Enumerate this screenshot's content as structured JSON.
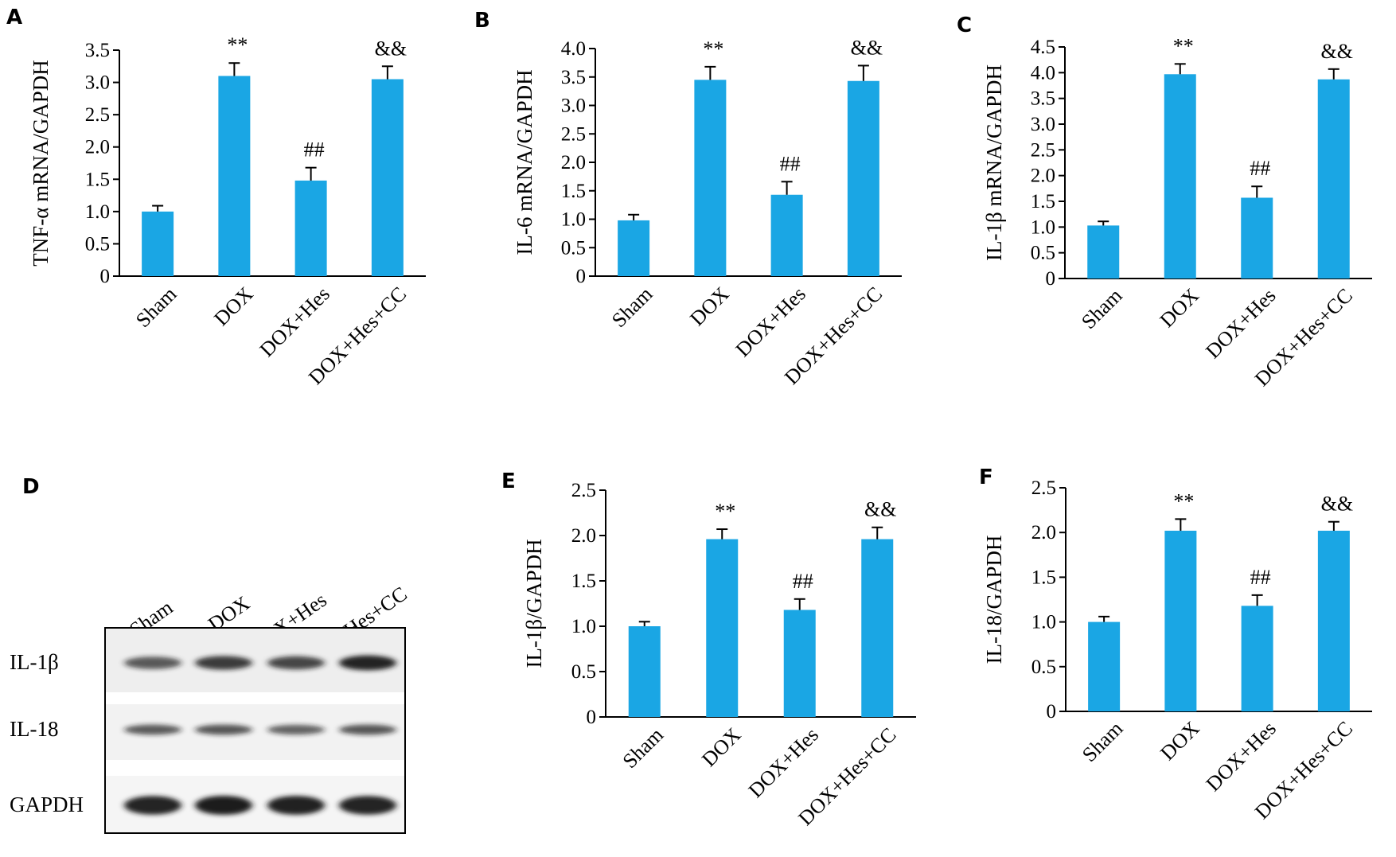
{
  "figure": {
    "panel_letters": [
      "A",
      "B",
      "C",
      "D",
      "E",
      "F"
    ]
  },
  "colors": {
    "bar": "#1aa6e4",
    "axis": "#000000",
    "blot_band": "#1a1a1a"
  },
  "blot": {
    "lanes": [
      "Sham",
      "DOX",
      "DOX+Hes",
      "DOX+Hes+CC"
    ],
    "rows": [
      "IL-1β",
      "IL-18",
      "GAPDH"
    ],
    "band_intensity": [
      [
        0.55,
        0.75,
        0.68,
        0.95
      ],
      [
        0.55,
        0.58,
        0.5,
        0.58
      ],
      [
        0.95,
        1.0,
        0.97,
        0.95
      ]
    ]
  },
  "chart_data": [
    {
      "panel": "A",
      "type": "bar",
      "ylabel": "TNF-α mRNA/GAPDH",
      "categories": [
        "Sham",
        "DOX",
        "DOX+Hes",
        "DOX+Hes+CC"
      ],
      "values": [
        1.0,
        3.1,
        1.48,
        3.05
      ],
      "errors": [
        0.09,
        0.2,
        0.2,
        0.2
      ],
      "annotations": [
        "",
        "**",
        "##",
        "&&"
      ],
      "ylim": [
        0,
        3.5
      ],
      "yticks": [
        0,
        0.5,
        1.0,
        1.5,
        2.0,
        2.5,
        3.0,
        3.5
      ],
      "ytick_labels": [
        "0",
        "0.5",
        "1.0",
        "1.5",
        "2.0",
        "2.5",
        "3.0",
        "3.5"
      ]
    },
    {
      "panel": "B",
      "type": "bar",
      "ylabel": "IL-6 mRNA/GAPDH",
      "categories": [
        "Sham",
        "DOX",
        "DOX+Hes",
        "DOX+Hes+CC"
      ],
      "values": [
        0.98,
        3.45,
        1.43,
        3.43
      ],
      "errors": [
        0.1,
        0.23,
        0.23,
        0.27
      ],
      "annotations": [
        "",
        "**",
        "##",
        "&&"
      ],
      "ylim": [
        0,
        4.0
      ],
      "yticks": [
        0,
        0.5,
        1.0,
        1.5,
        2.0,
        2.5,
        3.0,
        3.5,
        4.0
      ],
      "ytick_labels": [
        "0",
        "0.5",
        "1.0",
        "1.5",
        "2.0",
        "2.5",
        "3.0",
        "3.5",
        "4.0"
      ]
    },
    {
      "panel": "C",
      "type": "bar",
      "ylabel": "IL-1β mRNA/GAPDH",
      "categories": [
        "Sham",
        "DOX",
        "DOX+Hes",
        "DOX+Hes+CC"
      ],
      "values": [
        1.03,
        3.97,
        1.57,
        3.87
      ],
      "errors": [
        0.08,
        0.2,
        0.22,
        0.2
      ],
      "annotations": [
        "",
        "**",
        "##",
        "&&"
      ],
      "ylim": [
        0,
        4.5
      ],
      "yticks": [
        0,
        0.5,
        1.0,
        1.5,
        2.0,
        2.5,
        3.0,
        3.5,
        4.0,
        4.5
      ],
      "ytick_labels": [
        "0",
        "0.5",
        "1.0",
        "1.5",
        "2.0",
        "2.5",
        "3.0",
        "3.5",
        "4.0",
        "4.5"
      ]
    },
    {
      "panel": "E",
      "type": "bar",
      "ylabel": "IL-1β/GAPDH",
      "categories": [
        "Sham",
        "DOX",
        "DOX+Hes",
        "DOX+Hes+CC"
      ],
      "values": [
        1.0,
        1.96,
        1.18,
        1.96
      ],
      "errors": [
        0.05,
        0.11,
        0.12,
        0.13
      ],
      "annotations": [
        "",
        "**",
        "##",
        "&&"
      ],
      "ylim": [
        0,
        2.5
      ],
      "yticks": [
        0,
        0.5,
        1.0,
        1.5,
        2.0,
        2.5
      ],
      "ytick_labels": [
        "0",
        "0.5",
        "1.0",
        "1.5",
        "2.0",
        "2.5"
      ]
    },
    {
      "panel": "F",
      "type": "bar",
      "ylabel": "IL-18/GAPDH",
      "categories": [
        "Sham",
        "DOX",
        "DOX+Hes",
        "DOX+Hes+CC"
      ],
      "values": [
        1.0,
        2.02,
        1.18,
        2.02
      ],
      "errors": [
        0.06,
        0.13,
        0.12,
        0.1
      ],
      "annotations": [
        "",
        "**",
        "##",
        "&&"
      ],
      "ylim": [
        0,
        2.5
      ],
      "yticks": [
        0,
        0.5,
        1.0,
        1.5,
        2.0,
        2.5
      ],
      "ytick_labels": [
        "0",
        "0.5",
        "1.0",
        "1.5",
        "2.0",
        "2.5"
      ]
    }
  ]
}
